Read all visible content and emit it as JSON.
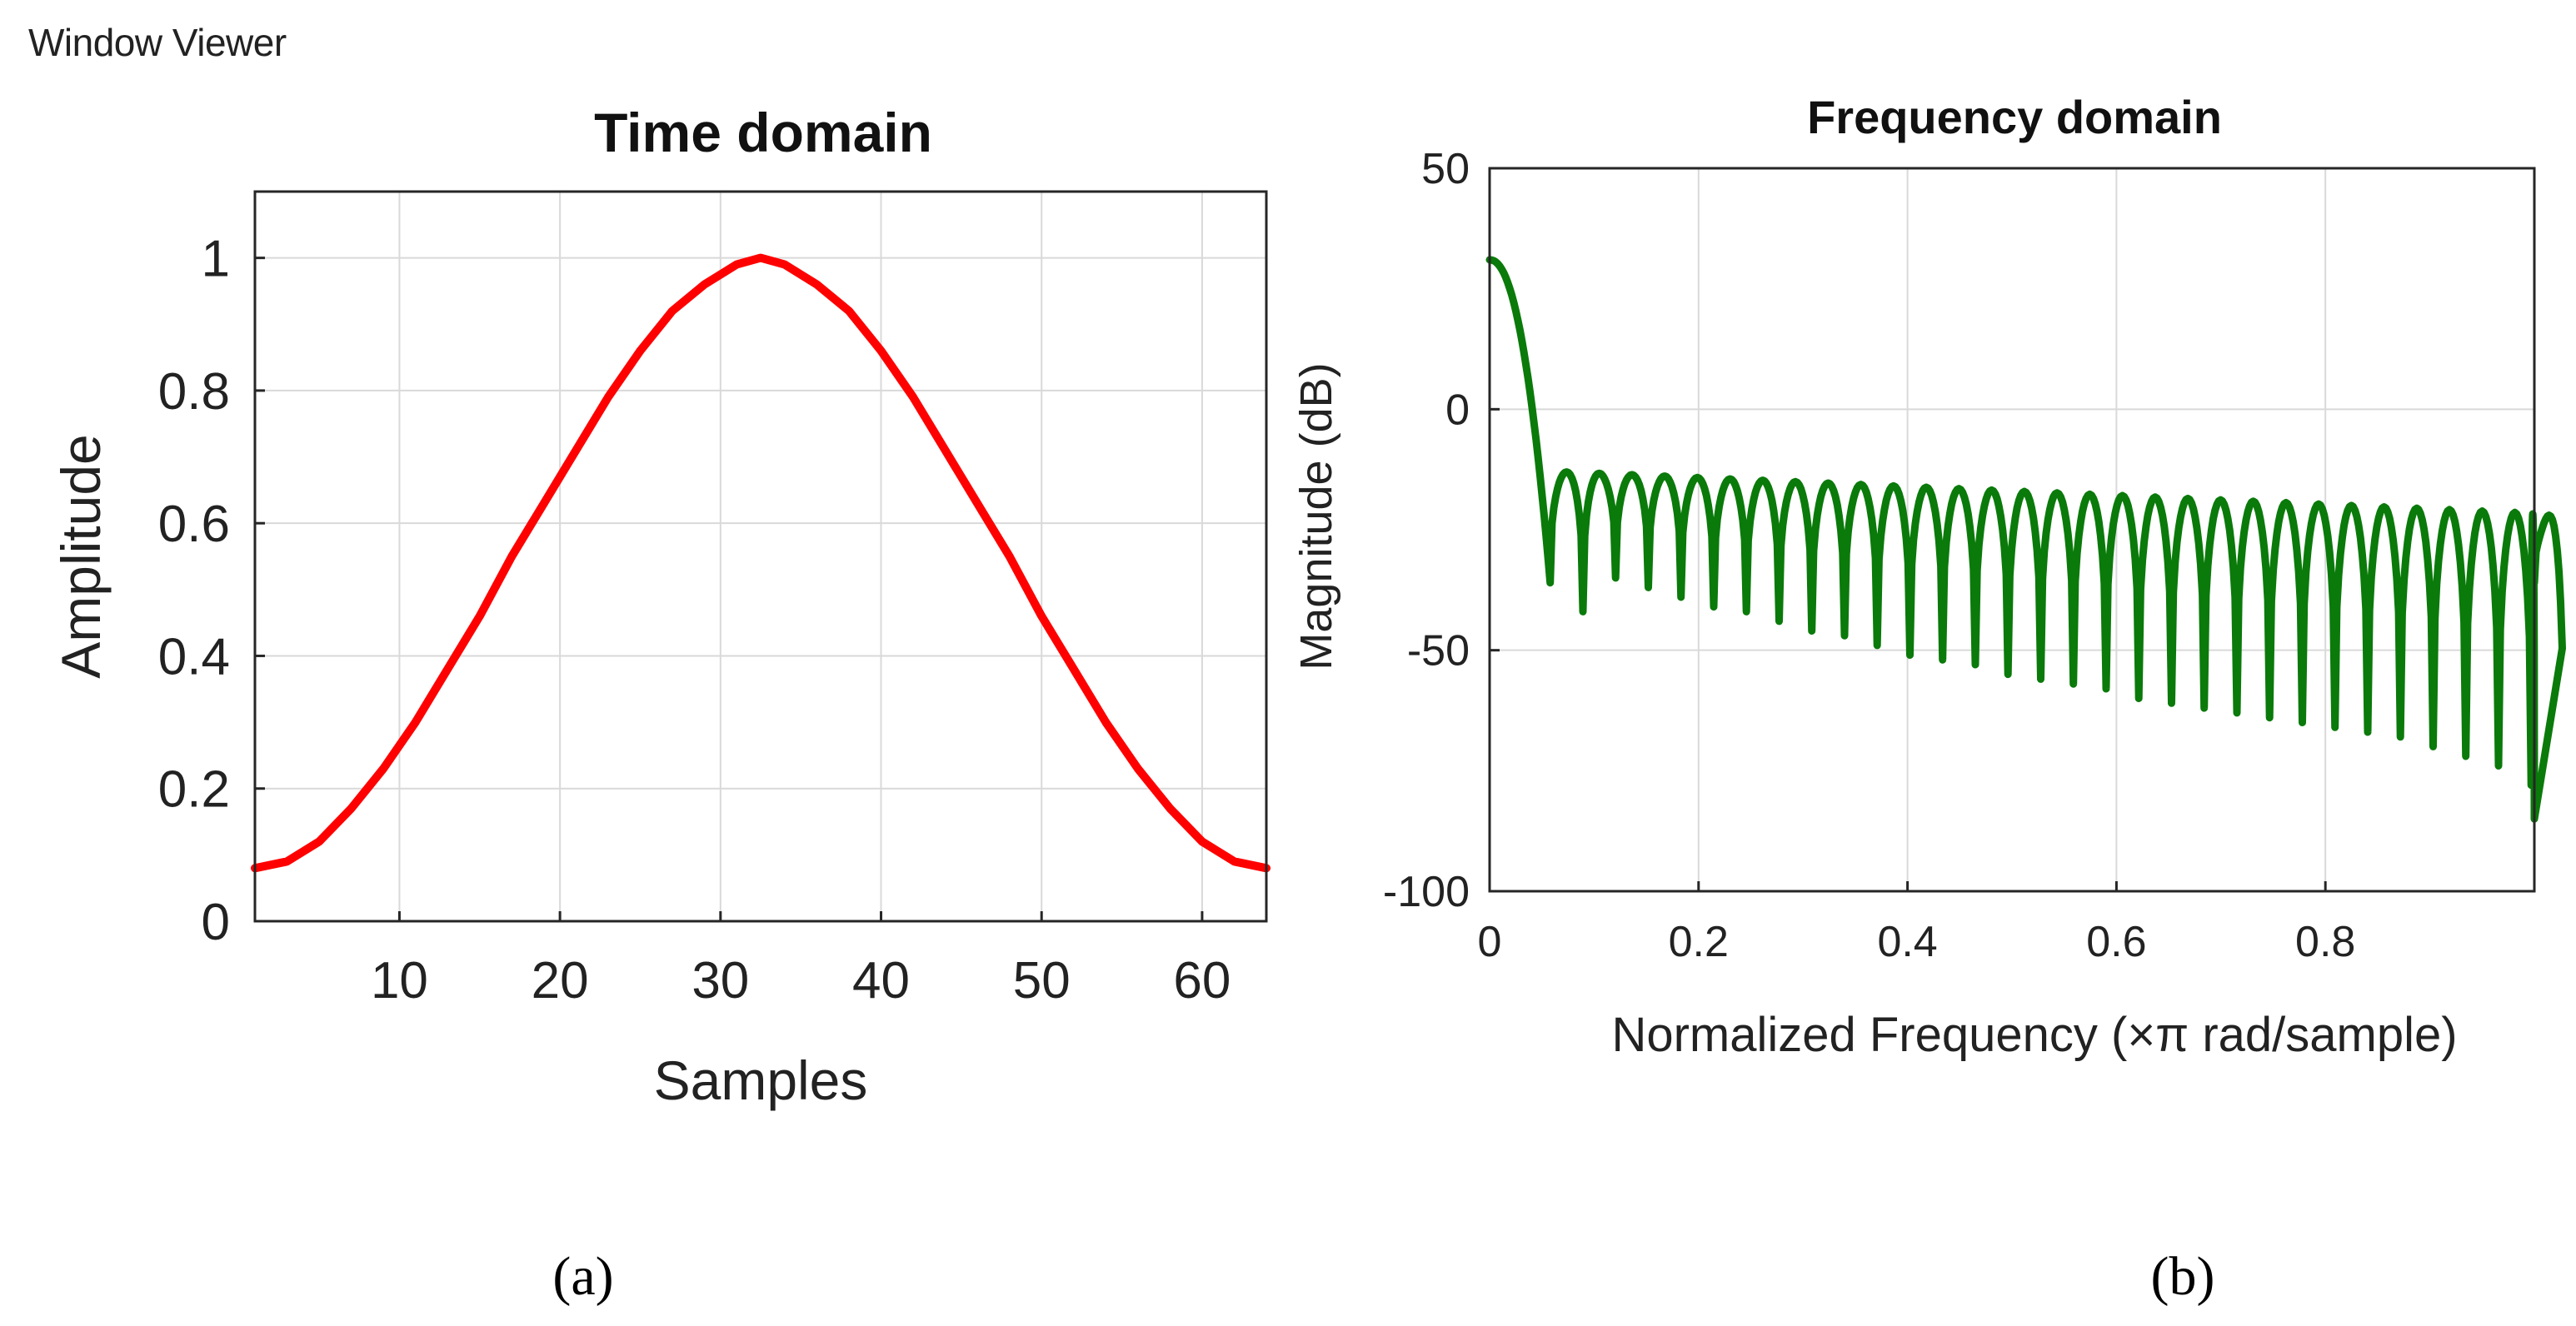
{
  "window": {
    "title": "Window Viewer"
  },
  "chart_data": [
    {
      "type": "line",
      "id": "a",
      "caption": "(a)",
      "title": "Time domain",
      "xlabel": "Samples",
      "ylabel": "Amplitude",
      "xlim": [
        1,
        64
      ],
      "ylim": [
        0,
        1.1
      ],
      "xticks": [
        10,
        20,
        30,
        40,
        50,
        60
      ],
      "yticks": [
        0,
        0.2,
        0.4,
        0.6,
        0.8,
        1
      ],
      "ytick_labels": [
        "0",
        "0.2",
        "0.4",
        "0.6",
        "0.8",
        "1"
      ],
      "grid": true,
      "line_color": "#ff0000",
      "series": [
        {
          "x": [
            1,
            3,
            5,
            7,
            9,
            11,
            13,
            15,
            17,
            19,
            21,
            23,
            25,
            27,
            29,
            31,
            32.5,
            34,
            36,
            38,
            40,
            42,
            44,
            46,
            48,
            50,
            52,
            54,
            56,
            58,
            60,
            62,
            64
          ],
          "y": [
            0.08,
            0.09,
            0.12,
            0.17,
            0.23,
            0.3,
            0.38,
            0.46,
            0.55,
            0.63,
            0.71,
            0.79,
            0.86,
            0.92,
            0.96,
            0.99,
            1.0,
            0.99,
            0.96,
            0.92,
            0.86,
            0.79,
            0.71,
            0.63,
            0.55,
            0.46,
            0.38,
            0.3,
            0.23,
            0.17,
            0.12,
            0.09,
            0.08
          ]
        }
      ]
    },
    {
      "type": "line",
      "id": "b",
      "caption": "(b)",
      "title": "Frequency domain",
      "xlabel": "Normalized Frequency  (×π rad/sample)",
      "ylabel": "Magnitude (dB)",
      "xlim": [
        0,
        1
      ],
      "ylim": [
        -100,
        50
      ],
      "xticks": [
        0,
        0.2,
        0.4,
        0.6,
        0.8
      ],
      "xtick_labels": [
        "0",
        "0.2",
        "0.4",
        "0.6",
        "0.8"
      ],
      "yticks": [
        -100,
        -50,
        0,
        50
      ],
      "ytick_labels": [
        "-100",
        "-50",
        "0",
        "50"
      ],
      "grid": true,
      "line_color": "#0a7a0a",
      "mainlobe": {
        "peak_db": 31,
        "end_x": 0.058,
        "end_db": -36
      },
      "first_null_x": 0.058,
      "null_spacing": 0.0313,
      "null_depths_db": [
        -36,
        -42,
        -35,
        -37,
        -39,
        -41,
        -42,
        -44,
        -46,
        -47,
        -49,
        -51,
        -52,
        -53,
        -55,
        -56,
        -57,
        -58,
        -60,
        -61,
        -62,
        -63,
        -64,
        -65,
        -66,
        -67,
        -68,
        -70,
        -72,
        -74,
        -78,
        -85
      ],
      "sidelobe_peak_start_db": -13,
      "sidelobe_peak_end_db": -22,
      "end_db": -36
    }
  ]
}
